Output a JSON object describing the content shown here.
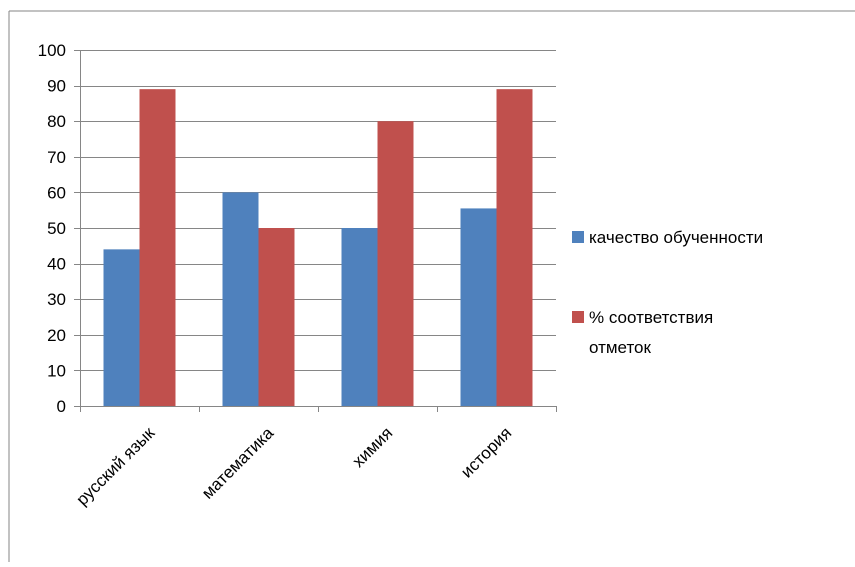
{
  "chart_data": {
    "type": "bar",
    "categories": [
      "русский язык",
      "математика",
      "химия",
      "история"
    ],
    "series": [
      {
        "name": "качество обученности",
        "values": [
          44,
          60,
          50,
          55.5
        ],
        "color": "#4f81bd"
      },
      {
        "name": "% соответствия отметок",
        "legend_lines": [
          "% соответствия",
          "отметок"
        ],
        "values": [
          89,
          50,
          80,
          89
        ],
        "color": "#c0504d"
      }
    ],
    "ylim": [
      0,
      100
    ],
    "yticks": [
      0,
      10,
      20,
      30,
      40,
      50,
      60,
      70,
      80,
      90,
      100
    ],
    "grid": true,
    "legend_position": "right",
    "title": "",
    "xlabel": "",
    "ylabel": ""
  }
}
